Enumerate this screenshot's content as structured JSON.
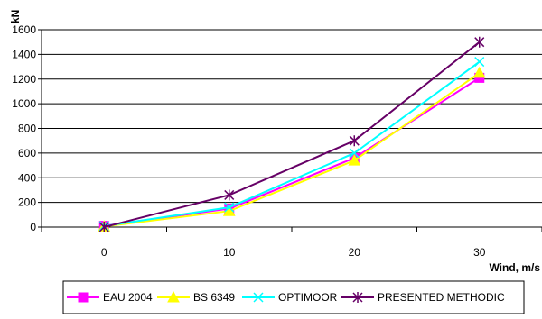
{
  "chart_data": {
    "type": "line",
    "title": "",
    "xlabel": "Wind, m/s",
    "ylabel": "kN",
    "x": [
      0,
      10,
      20,
      30
    ],
    "xlim": [
      -5,
      35
    ],
    "ylim": [
      0,
      1600
    ],
    "yticks": [
      0,
      200,
      400,
      600,
      800,
      1000,
      1200,
      1400,
      1600
    ],
    "xticks": [
      0,
      10,
      20,
      30
    ],
    "grid": "horizontal",
    "legend": "bottom",
    "series": [
      {
        "name": "EAU 2004",
        "values": [
          10,
          150,
          560,
          1210
        ],
        "color": "#ff00ff",
        "marker": "square"
      },
      {
        "name": "BS 6349",
        "values": [
          5,
          130,
          540,
          1250
        ],
        "color": "#ffff00",
        "marker": "triangle"
      },
      {
        "name": "OPTIMOOR",
        "values": [
          8,
          160,
          600,
          1340
        ],
        "color": "#00ffff",
        "marker": "x"
      },
      {
        "name": "PRESENTED METHODIC",
        "values": [
          0,
          260,
          700,
          1500
        ],
        "color": "#660066",
        "marker": "star"
      }
    ]
  }
}
